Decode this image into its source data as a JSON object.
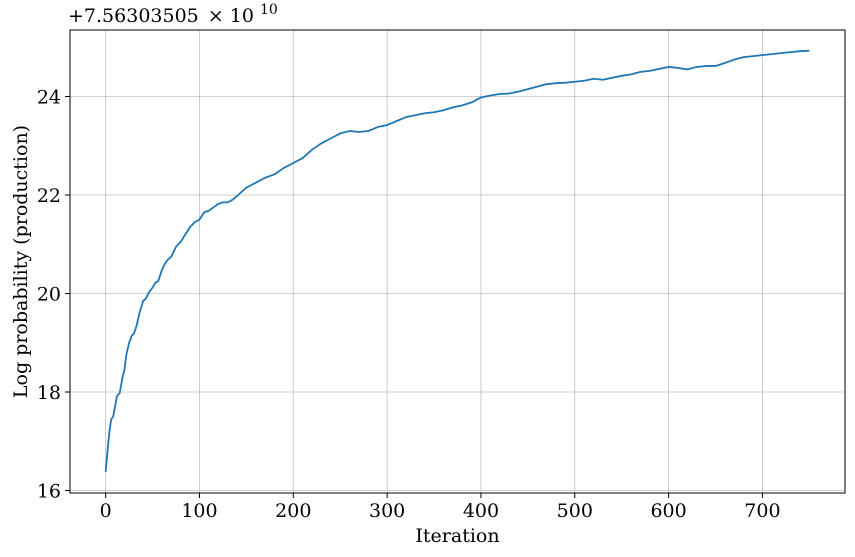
{
  "chart_data": {
    "type": "line",
    "title": "",
    "xlabel": "Iteration",
    "ylabel": "Log probability (production)",
    "offset_text": "+7.56303505",
    "offset_multiplier": "× 10",
    "offset_exponent": "10",
    "xlim": [
      -38,
      788
    ],
    "ylim": [
      15.95,
      25.35
    ],
    "xticks": [
      0,
      100,
      200,
      300,
      400,
      500,
      600,
      700
    ],
    "yticks": [
      16,
      18,
      20,
      22,
      24
    ],
    "grid": true,
    "line_color": "#1f77b4",
    "series": [
      {
        "x": [
          0,
          2,
          4,
          6,
          8,
          10,
          12,
          15,
          18,
          20,
          22,
          25,
          28,
          30,
          33,
          36,
          40,
          43,
          46,
          50,
          53,
          56,
          60,
          63,
          66,
          70,
          75,
          80,
          85,
          90,
          95,
          100,
          105,
          110,
          115,
          120,
          125,
          130,
          135,
          140,
          150,
          160,
          170,
          180,
          190,
          200,
          210,
          220,
          230,
          240,
          250,
          260,
          270,
          280,
          290,
          300,
          310,
          320,
          330,
          340,
          350,
          360,
          370,
          380,
          390,
          400,
          410,
          420,
          430,
          440,
          450,
          460,
          470,
          480,
          490,
          500,
          510,
          520,
          530,
          540,
          550,
          560,
          570,
          580,
          590,
          600,
          610,
          620,
          630,
          640,
          650,
          660,
          670,
          680,
          690,
          700,
          710,
          720,
          730,
          740,
          750
        ],
        "y": [
          16.38,
          16.8,
          17.2,
          17.45,
          17.5,
          17.7,
          17.92,
          17.98,
          18.3,
          18.45,
          18.75,
          19.0,
          19.15,
          19.18,
          19.35,
          19.6,
          19.85,
          19.9,
          20.02,
          20.12,
          20.22,
          20.25,
          20.48,
          20.6,
          20.68,
          20.75,
          20.95,
          21.05,
          21.2,
          21.35,
          21.45,
          21.5,
          21.65,
          21.68,
          21.75,
          21.82,
          21.85,
          21.85,
          21.9,
          21.98,
          22.15,
          22.25,
          22.35,
          22.42,
          22.55,
          22.65,
          22.75,
          22.92,
          23.05,
          23.15,
          23.25,
          23.3,
          23.28,
          23.3,
          23.38,
          23.42,
          23.5,
          23.58,
          23.62,
          23.66,
          23.68,
          23.72,
          23.78,
          23.82,
          23.88,
          23.98,
          24.02,
          24.05,
          24.06,
          24.1,
          24.15,
          24.2,
          24.25,
          24.27,
          24.28,
          24.3,
          24.32,
          24.36,
          24.34,
          24.38,
          24.42,
          24.45,
          24.5,
          24.52,
          24.56,
          24.6,
          24.58,
          24.55,
          24.6,
          24.62,
          24.62,
          24.68,
          24.75,
          24.8,
          24.82,
          24.84,
          24.86,
          24.88,
          24.9,
          24.92,
          24.93
        ]
      }
    ]
  }
}
